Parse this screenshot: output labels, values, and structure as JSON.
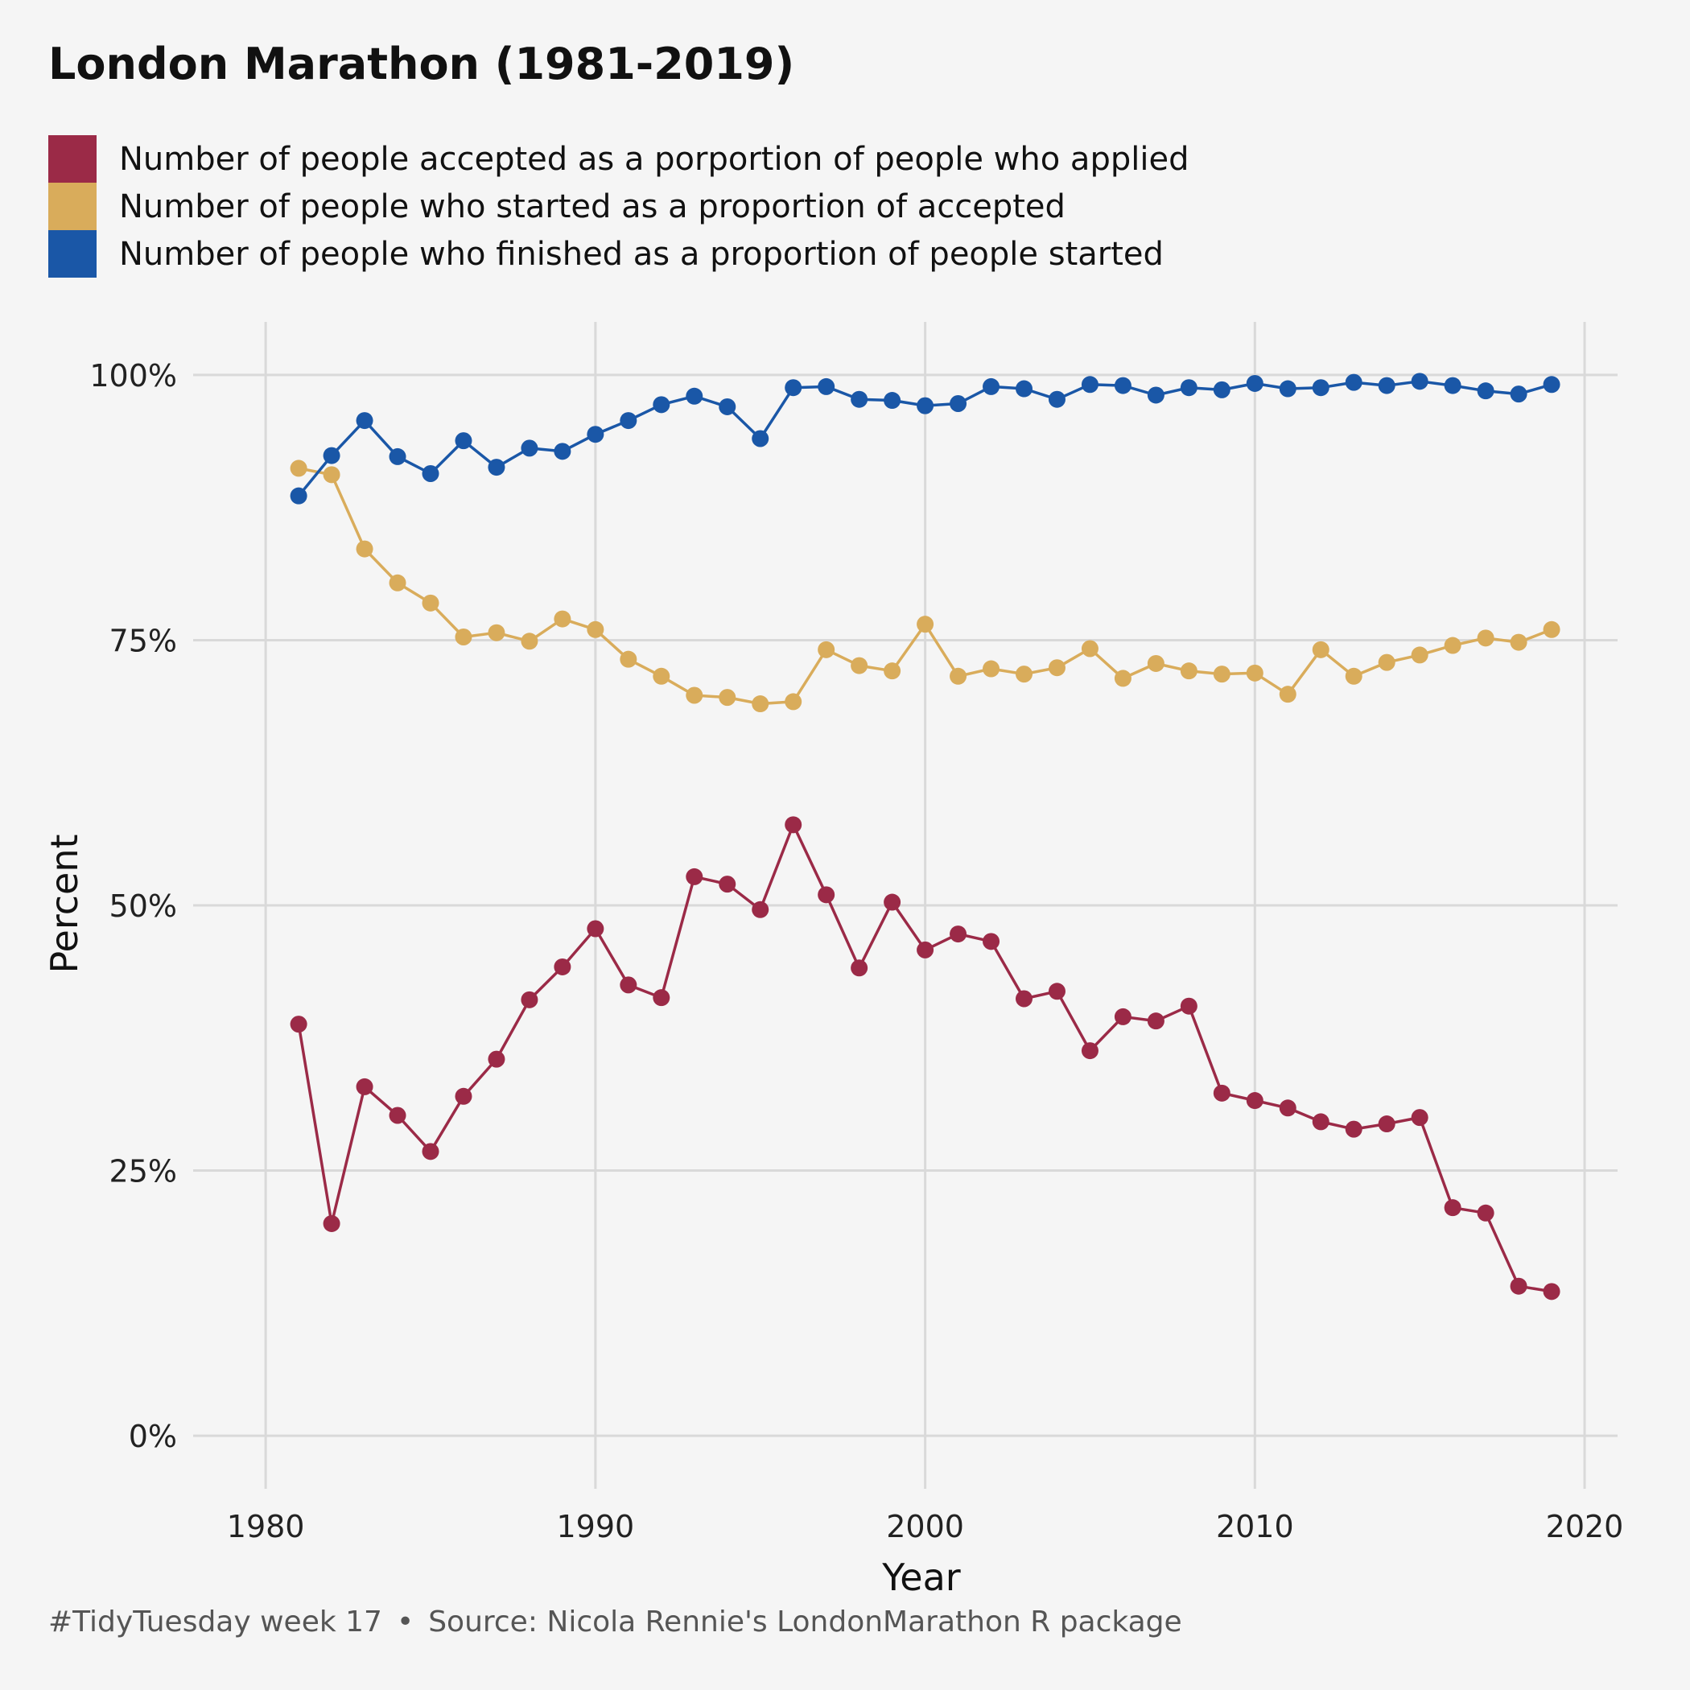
{
  "chart_data": {
    "type": "line",
    "title": "London Marathon (1981-2019)",
    "xlabel": "Year",
    "ylabel": "Percent",
    "xlim": [
      1977.8,
      2021
    ],
    "ylim": [
      -5,
      105
    ],
    "xticks": [
      1980,
      1990,
      2000,
      2010,
      2020
    ],
    "yticks": [
      0,
      25,
      50,
      75,
      100
    ],
    "ytick_labels": [
      "0%",
      "25%",
      "50%",
      "75%",
      "100%"
    ],
    "grid": true,
    "legend_position": "top",
    "x": [
      1981,
      1982,
      1983,
      1984,
      1985,
      1986,
      1987,
      1988,
      1989,
      1990,
      1991,
      1992,
      1993,
      1994,
      1995,
      1996,
      1997,
      1998,
      1999,
      2000,
      2001,
      2002,
      2003,
      2004,
      2005,
      2006,
      2007,
      2008,
      2009,
      2010,
      2011,
      2012,
      2013,
      2014,
      2015,
      2016,
      2017,
      2018,
      2019
    ],
    "series": [
      {
        "name": "Number of people accepted as a porportion of people who applied",
        "color": "#9b2a47",
        "values": [
          38.8,
          20.0,
          32.9,
          30.2,
          26.8,
          32.0,
          35.5,
          41.1,
          44.2,
          47.8,
          42.5,
          41.3,
          52.7,
          52.0,
          49.6,
          57.6,
          51.0,
          44.1,
          50.3,
          45.8,
          47.3,
          46.6,
          41.2,
          41.9,
          36.3,
          39.5,
          39.1,
          40.5,
          32.3,
          31.6,
          30.9,
          29.6,
          28.9,
          29.4,
          30.0,
          21.5,
          21.0,
          14.1,
          13.6
        ]
      },
      {
        "name": "Number of people who started as a proportion of accepted",
        "color": "#d9ac5b",
        "values": [
          91.2,
          90.6,
          83.6,
          80.4,
          78.5,
          75.3,
          75.7,
          74.9,
          77.0,
          76.0,
          73.2,
          71.6,
          69.8,
          69.6,
          69.0,
          69.2,
          74.1,
          72.6,
          72.1,
          76.5,
          71.6,
          72.3,
          71.8,
          72.4,
          74.2,
          71.4,
          72.8,
          72.1,
          71.8,
          71.9,
          69.9,
          74.1,
          71.6,
          72.9,
          73.6,
          74.5,
          75.2,
          74.8,
          76.0
        ]
      },
      {
        "name": "Number of people who finished as a proportion of people started",
        "color": "#1a57a7",
        "values": [
          88.6,
          92.4,
          95.7,
          92.3,
          90.7,
          93.8,
          91.3,
          93.1,
          92.8,
          94.4,
          95.7,
          97.2,
          98.0,
          97.0,
          94.0,
          98.8,
          98.9,
          97.7,
          97.6,
          97.1,
          97.3,
          98.9,
          98.7,
          97.7,
          99.1,
          99.0,
          98.1,
          98.8,
          98.6,
          99.2,
          98.7,
          98.8,
          99.3,
          99.0,
          99.4,
          99.0,
          98.5,
          98.2,
          99.1
        ]
      }
    ]
  },
  "caption": {
    "tag": "#TidyTuesday week 17",
    "separator": "•",
    "source": "Source: Nicola Rennie's LondonMarathon R package"
  }
}
